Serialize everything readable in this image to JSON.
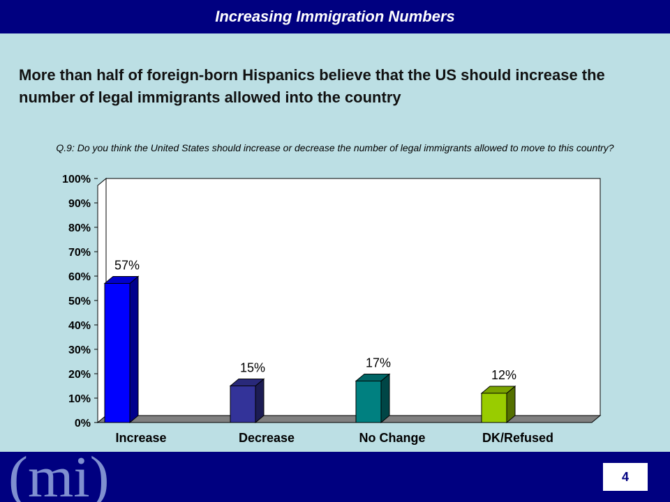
{
  "header": {
    "title": "Increasing Immigration Numbers"
  },
  "headline": "More than half of foreign-born Hispanics believe that the US should increase the number of legal immigrants allowed into the country",
  "question": "Q.9:  Do you think the United States should increase or decrease the number of legal immigrants allowed to move to this country?",
  "footer": {
    "page_number": "4",
    "logo_text": "(mi)"
  },
  "chart_data": {
    "type": "bar",
    "categories": [
      "Increase",
      "Decrease",
      "No Change",
      "DK/Refused"
    ],
    "values": [
      57,
      15,
      17,
      12
    ],
    "value_labels": [
      "57%",
      "15%",
      "17%",
      "12%"
    ],
    "yticks": [
      "0%",
      "10%",
      "20%",
      "30%",
      "40%",
      "50%",
      "60%",
      "70%",
      "80%",
      "90%",
      "100%"
    ],
    "ylim": [
      0,
      100
    ],
    "grid": false,
    "style": "3d",
    "colors": [
      "#0000ff",
      "#333399",
      "#008080",
      "#99cc00"
    ],
    "plot_background": "#ffffff",
    "floor_color": "#808080"
  }
}
